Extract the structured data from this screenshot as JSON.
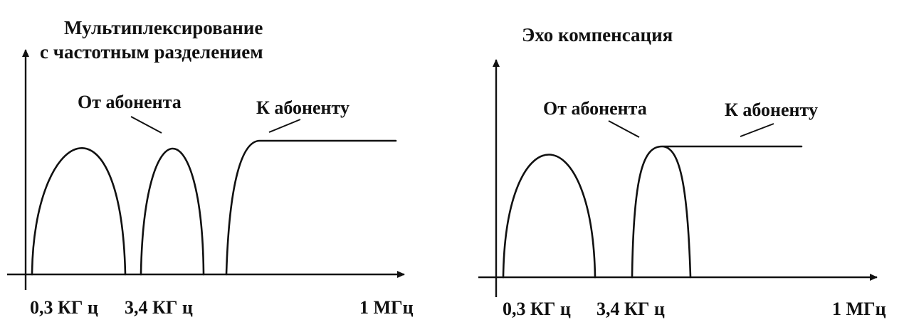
{
  "left_panel": {
    "title_line1": "Мультиплексирование",
    "title_line2": "с частотным разделением",
    "label_from_subscriber": "От абонента",
    "label_to_subscriber": "К абоненту",
    "tick_03": "0,3 КГ ц",
    "tick_34": "3,4 КГ ц",
    "tick_1m": "1 МГц"
  },
  "right_panel": {
    "title": "Эхо компенсация",
    "label_from_subscriber": "От абонента",
    "label_to_subscriber": "К абоненту",
    "tick_03": "0,3 КГ ц",
    "tick_34": "3,4 КГ ц",
    "tick_1m": "1 МГц"
  },
  "colors": {
    "ink": "#111111",
    "background": "#ffffff"
  }
}
